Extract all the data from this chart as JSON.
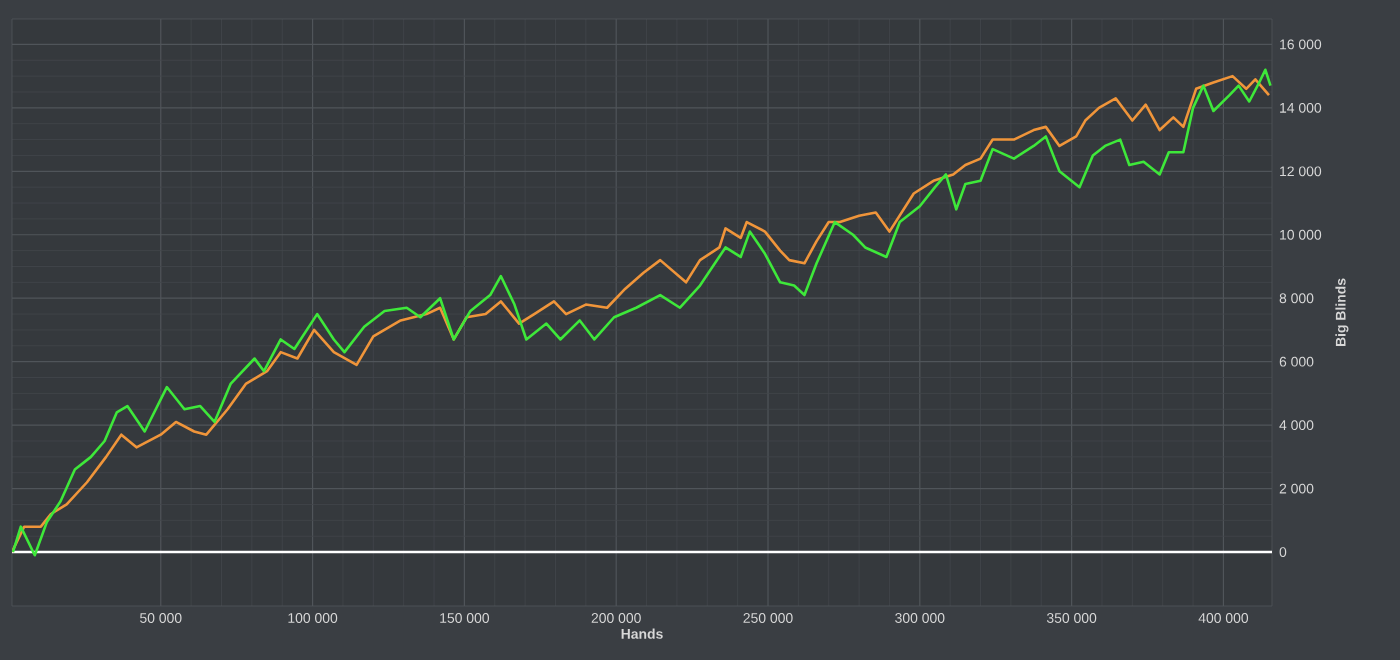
{
  "chart_data": {
    "type": "line",
    "xlabel": "Hands",
    "ylabel": "Big Blinds",
    "xlim": [
      1000,
      416000
    ],
    "ylim": [
      -1700,
      16800
    ],
    "xticks": [
      {
        "value": 50000,
        "label": "50 000"
      },
      {
        "value": 100000,
        "label": "100 000"
      },
      {
        "value": 150000,
        "label": "150 000"
      },
      {
        "value": 200000,
        "label": "200 000"
      },
      {
        "value": 250000,
        "label": "250 000"
      },
      {
        "value": 300000,
        "label": "300 000"
      },
      {
        "value": 350000,
        "label": "350 000"
      },
      {
        "value": 400000,
        "label": "400 000"
      }
    ],
    "yticks": [
      0,
      {
        "value": 2000,
        "label": "2 000"
      },
      {
        "value": 4000,
        "label": "4 000"
      },
      {
        "value": 6000,
        "label": "6 000"
      },
      {
        "value": 8000,
        "label": "8 000"
      },
      {
        "value": 10000,
        "label": "10 000"
      },
      {
        "value": 12000,
        "label": "12 000"
      },
      {
        "value": 14000,
        "label": "14 000"
      },
      {
        "value": 16000,
        "label": "16 000"
      }
    ],
    "grid": true,
    "ref_lines": [
      {
        "axis": "y",
        "value": 0,
        "color": "#ffffff"
      }
    ],
    "series": [
      {
        "color": "#f0953a",
        "x": [
          1000,
          5000,
          10500,
          13800,
          19000,
          25700,
          32000,
          37000,
          42000,
          50000,
          55000,
          61000,
          65000,
          72000,
          78000,
          85000,
          89500,
          95000,
          100500,
          107000,
          114500,
          120000,
          129000,
          137500,
          142000,
          146500,
          150700,
          157000,
          162000,
          168000,
          173000,
          179500,
          183500,
          190000,
          197000,
          203000,
          209000,
          214500,
          223000,
          227600,
          234000,
          236000,
          241000,
          243000,
          249000,
          254000,
          257000,
          262000,
          266000,
          270000,
          273700,
          280000,
          285500,
          290000,
          298000,
          304500,
          311000,
          315000,
          320000,
          324000,
          331000,
          337500,
          341500,
          346000,
          351500,
          354500,
          359000,
          364500,
          370000,
          374400,
          379000,
          383500,
          386800,
          391000,
          396700,
          403000,
          407500,
          410500,
          415000
        ],
        "values": [
          0,
          800,
          800,
          1200,
          1500,
          2200,
          3000,
          3700,
          3300,
          3700,
          4100,
          3800,
          3700,
          4500,
          5300,
          5700,
          6300,
          6100,
          7000,
          6300,
          5900,
          6800,
          7300,
          7500,
          7700,
          6700,
          7400,
          7500,
          7900,
          7200,
          7500,
          7900,
          7500,
          7800,
          7700,
          8300,
          8800,
          9200,
          8500,
          9200,
          9600,
          10200,
          9900,
          10400,
          10100,
          9500,
          9200,
          9100,
          9800,
          10400,
          10400,
          10600,
          10700,
          10100,
          11300,
          11700,
          11900,
          12200,
          12400,
          13000,
          13000,
          13300,
          13400,
          12800,
          13100,
          13600,
          14000,
          14300,
          13600,
          14100,
          13300,
          13700,
          13400,
          14600,
          14800,
          15000,
          14600,
          14900,
          14400
        ]
      },
      {
        "color": "#3ee83a",
        "x": [
          1300,
          3900,
          8500,
          12500,
          17000,
          21700,
          27000,
          31500,
          35500,
          39000,
          44700,
          52000,
          57800,
          63000,
          67700,
          73000,
          80900,
          84000,
          89500,
          94000,
          101500,
          107000,
          110500,
          117000,
          123700,
          131000,
          135500,
          142000,
          146500,
          152000,
          158500,
          162000,
          166500,
          170400,
          177000,
          181600,
          188000,
          192800,
          199300,
          206600,
          214500,
          221000,
          227600,
          236000,
          241000,
          244000,
          249000,
          254000,
          258600,
          262000,
          266000,
          272000,
          278000,
          282000,
          289000,
          293400,
          300000,
          305000,
          308600,
          312000,
          315000,
          320000,
          324000,
          331000,
          337500,
          341500,
          346000,
          352600,
          357000,
          361000,
          366000,
          369000,
          373700,
          379000,
          382000,
          386800,
          390000,
          393400,
          396700,
          402000,
          405000,
          408500,
          411800,
          413800,
          415500
        ],
        "values": [
          0,
          800,
          -100,
          950,
          1600,
          2600,
          3000,
          3500,
          4400,
          4600,
          3800,
          5200,
          4500,
          4600,
          4100,
          5300,
          6100,
          5700,
          6700,
          6400,
          7500,
          6700,
          6300,
          7100,
          7600,
          7700,
          7400,
          8000,
          6700,
          7600,
          8100,
          8700,
          7800,
          6700,
          7200,
          6700,
          7300,
          6700,
          7400,
          7700,
          8100,
          7700,
          8400,
          9600,
          9300,
          10100,
          9400,
          8500,
          8400,
          8100,
          9100,
          10400,
          10000,
          9600,
          9300,
          10400,
          10900,
          11500,
          11900,
          10800,
          11600,
          11700,
          12700,
          12400,
          12800,
          13100,
          12000,
          11500,
          12500,
          12800,
          13000,
          12200,
          12300,
          11900,
          12600,
          12600,
          14000,
          14700,
          13900,
          14400,
          14700,
          14200,
          14800,
          15200,
          14700
        ]
      }
    ]
  }
}
